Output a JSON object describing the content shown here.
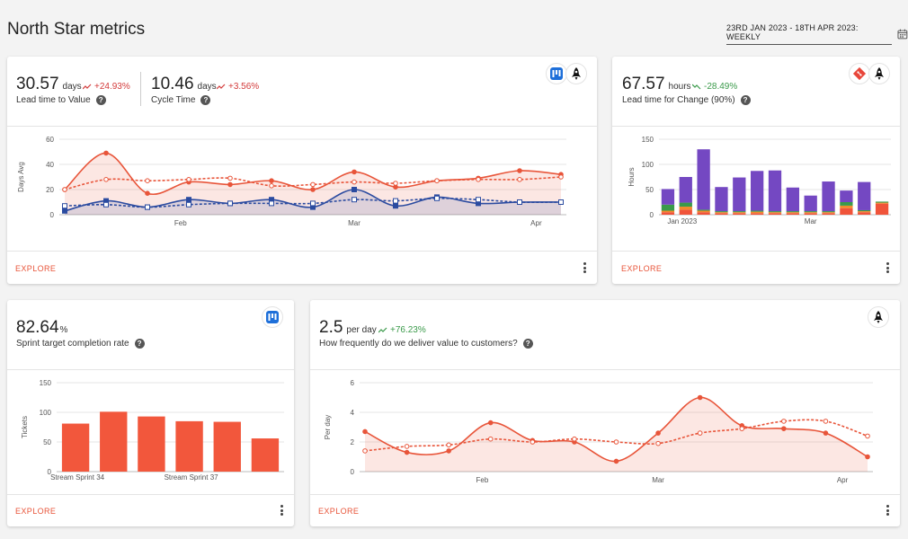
{
  "header": {
    "title": "North Star metrics",
    "date_range": "23RD JAN 2023 - 18TH APR 2023: WEEKLY"
  },
  "colors": {
    "accent": "#e8553a",
    "navy": "#2b4ba0",
    "purple": "#7448c2",
    "green": "#3a9a4a",
    "orange": "#f38a2a",
    "red_negative": "#d33a3a"
  },
  "cards": {
    "lead": {
      "metrics": [
        {
          "value": "30.57",
          "unit": "days",
          "delta": "+24.93%",
          "label": "Lead time to Value"
        },
        {
          "value": "10.46",
          "unit": "days",
          "delta": "+3.56%",
          "label": "Cycle Time"
        }
      ],
      "icons": [
        "kanban-board-icon",
        "rocket-icon"
      ],
      "explore": "EXPLORE"
    },
    "change": {
      "value": "67.57",
      "unit": "hours",
      "delta": "-28.49%",
      "label": "Lead time for Change (90%)",
      "icons": [
        "git-icon",
        "rocket-icon"
      ],
      "explore": "EXPLORE"
    },
    "sprint": {
      "value": "82.64",
      "unit": "%",
      "label": "Sprint target completion rate",
      "icons": [
        "kanban-board-icon"
      ],
      "explore": "EXPLORE"
    },
    "deliver": {
      "value": "2.5",
      "unit": "per day",
      "delta": "+76.23%",
      "label": "How frequently do we deliver value to customers?",
      "icons": [
        "rocket-icon"
      ],
      "explore": "EXPLORE"
    }
  },
  "chart_data": [
    {
      "id": "lead",
      "type": "line",
      "ylabel": "Days Avg",
      "ylim": [
        0,
        60
      ],
      "yticks": [
        0,
        20,
        40,
        60
      ],
      "x_tick_labels": [
        {
          "label": "Feb",
          "at": 2.8
        },
        {
          "label": "Mar",
          "at": 7
        },
        {
          "label": "Apr",
          "at": 11.4
        }
      ],
      "x": [
        0,
        1,
        2,
        3,
        4,
        5,
        6,
        7,
        8,
        9,
        10,
        11,
        12
      ],
      "series": [
        {
          "style": "solid",
          "color": "#e8553a",
          "fill": true,
          "values": [
            20,
            49,
            17,
            26,
            24,
            27,
            20,
            34,
            22,
            27,
            29,
            35,
            32
          ]
        },
        {
          "style": "dashed",
          "color": "#e8553a",
          "fill": false,
          "values": [
            20,
            28,
            27,
            28,
            29,
            23,
            24,
            26,
            25,
            27,
            28,
            28,
            30
          ]
        },
        {
          "style": "solid",
          "color": "#2b4ba0",
          "fill": true,
          "values": [
            3,
            11,
            6,
            12,
            9,
            12,
            6,
            20,
            7,
            14,
            9,
            10,
            10
          ]
        },
        {
          "style": "dashed",
          "color": "#2b4ba0",
          "fill": false,
          "values": [
            7,
            8,
            6,
            8,
            9,
            9,
            9,
            12,
            11,
            13,
            12,
            10,
            10
          ]
        }
      ]
    },
    {
      "id": "change",
      "type": "bar",
      "ylabel": "Hours",
      "ylim": [
        0,
        150
      ],
      "yticks": [
        0,
        50,
        100,
        150
      ],
      "x_tick_labels": [
        {
          "label": "Jan 2023",
          "at": 0.8
        },
        {
          "label": "Mar",
          "at": 8
        }
      ],
      "series": [
        {
          "color": "#f0543a",
          "values": [
            5,
            10,
            5,
            3,
            3,
            3,
            3,
            3,
            3,
            3,
            13,
            5,
            22
          ]
        },
        {
          "color": "#f38a2a",
          "values": [
            3,
            6,
            3,
            2,
            2,
            3,
            2,
            2,
            2,
            2,
            5,
            2,
            2
          ]
        },
        {
          "color": "#3a9a4a",
          "values": [
            12,
            8,
            2,
            2,
            2,
            2,
            2,
            2,
            2,
            2,
            7,
            2,
            2
          ]
        },
        {
          "color": "#7448c2",
          "values": [
            31,
            51,
            120,
            48,
            67,
            79,
            81,
            47,
            31,
            59,
            23,
            56,
            0
          ]
        }
      ]
    },
    {
      "id": "sprint",
      "type": "bar",
      "ylabel": "Tickets",
      "ylim": [
        0,
        150
      ],
      "yticks": [
        0,
        50,
        100,
        150
      ],
      "categories": [
        "Stream Sprint 34",
        "",
        "",
        "Stream Sprint 37",
        "",
        ""
      ],
      "x_tick_labels": [
        {
          "label": "Stream Sprint 34",
          "at": 0
        },
        {
          "label": "Stream Sprint 37",
          "at": 3
        }
      ],
      "color": "#f2573c",
      "values": [
        81,
        101,
        93,
        85,
        84,
        56
      ]
    },
    {
      "id": "deliver",
      "type": "line",
      "ylabel": "Per day",
      "ylim": [
        0,
        6
      ],
      "yticks": [
        0,
        2,
        4,
        6
      ],
      "x_tick_labels": [
        {
          "label": "Feb",
          "at": 2.8
        },
        {
          "label": "Mar",
          "at": 7
        },
        {
          "label": "Apr",
          "at": 11.4
        }
      ],
      "x": [
        0,
        1,
        2,
        3,
        4,
        5,
        6,
        7,
        8,
        9,
        10,
        11,
        12
      ],
      "series": [
        {
          "style": "solid",
          "color": "#e8553a",
          "fill": true,
          "values": [
            2.7,
            1.3,
            1.4,
            3.3,
            2.1,
            2.0,
            0.7,
            2.6,
            5.0,
            3.1,
            2.9,
            2.6,
            1.0
          ]
        },
        {
          "style": "dashed",
          "color": "#e8553a",
          "fill": false,
          "values": [
            1.4,
            1.7,
            1.8,
            2.2,
            2.0,
            2.2,
            2.0,
            1.9,
            2.6,
            2.9,
            3.4,
            3.4,
            2.4
          ]
        }
      ]
    }
  ]
}
